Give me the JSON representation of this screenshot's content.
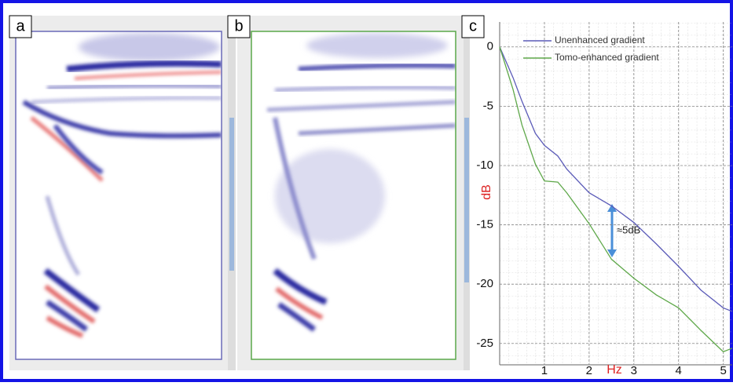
{
  "panels": {
    "a": "a",
    "b": "b",
    "c": "c"
  },
  "chart_data": {
    "type": "line",
    "xlabel": "Hz",
    "ylabel": "dB",
    "annotation": "≈5dB",
    "xlim": [
      0,
      5.2
    ],
    "ylim": [
      -26.8,
      2.1
    ],
    "xticks": [
      1,
      2,
      3,
      4,
      5
    ],
    "yticks": [
      0,
      -5,
      -10,
      -15,
      -20,
      -25
    ],
    "grid": true,
    "legend": "upper left",
    "x": [
      0,
      0.3,
      0.5,
      0.8,
      1.0,
      1.3,
      1.5,
      2.0,
      2.5,
      3.0,
      3.5,
      4.0,
      4.5,
      5.0,
      5.2
    ],
    "series": [
      {
        "name": "Unenhanced gradient",
        "color": "#5b5bb8",
        "values": [
          0,
          -2.6,
          -4.6,
          -7.3,
          -8.3,
          -9.2,
          -10.3,
          -12.3,
          -13.4,
          -14.8,
          -16.6,
          -18.5,
          -20.5,
          -22.0,
          -22.3
        ]
      },
      {
        "name": "Tomo-enhanced gradient",
        "color": "#5fa84a",
        "values": [
          0,
          -3.6,
          -6.6,
          -9.9,
          -11.3,
          -11.4,
          -12.3,
          -14.9,
          -17.9,
          -19.5,
          -20.9,
          -22.0,
          -23.9,
          -25.7,
          -25.4
        ]
      }
    ]
  }
}
